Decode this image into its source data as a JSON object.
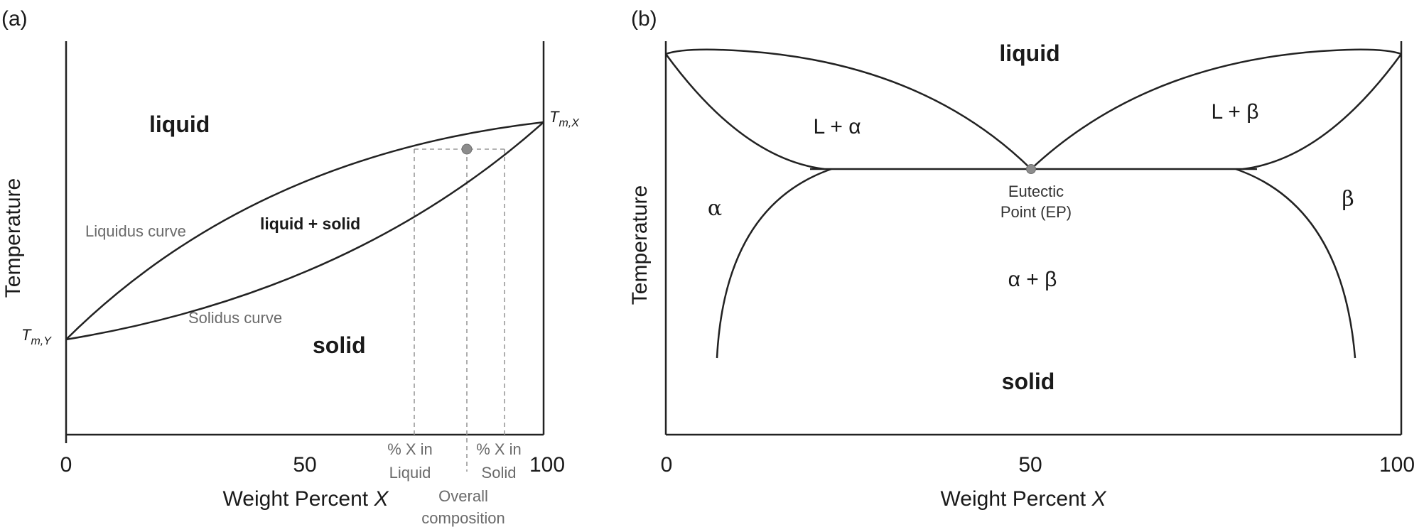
{
  "panel_a": {
    "label": "(a)",
    "y_axis_title": "Temperature",
    "x_axis_title": "Weight Percent",
    "x_axis_var": "X",
    "x_ticks": [
      "0",
      "50",
      "100"
    ],
    "regions": {
      "liquid": "liquid",
      "two_phase": "liquid + solid",
      "solid": "solid"
    },
    "curve_labels": {
      "liquidus": "Liquidus curve",
      "solidus": "Solidus curve"
    },
    "melting_points": {
      "x_main": "T",
      "x_sub": "m,X",
      "y_main": "T",
      "y_sub": "m,Y"
    },
    "annotations": {
      "liquid_comp_line1": "% X in",
      "liquid_comp_line2": "Liquid",
      "solid_comp_line1": "% X in",
      "solid_comp_line2": "Solid",
      "overall_line1": "Overall",
      "overall_line2": "composition"
    }
  },
  "panel_b": {
    "label": "(b)",
    "y_axis_title": "Temperature",
    "x_axis_title": "Weight Percent",
    "x_axis_var": "X",
    "x_ticks": [
      "0",
      "50",
      "100"
    ],
    "regions": {
      "liquid": "liquid",
      "l_alpha": "L + α",
      "l_beta": "L + β",
      "alpha": "α",
      "beta": "β",
      "alpha_beta": "α + β",
      "solid": "solid"
    },
    "eutectic_line1": "Eutectic",
    "eutectic_line2": "Point (EP)"
  }
}
